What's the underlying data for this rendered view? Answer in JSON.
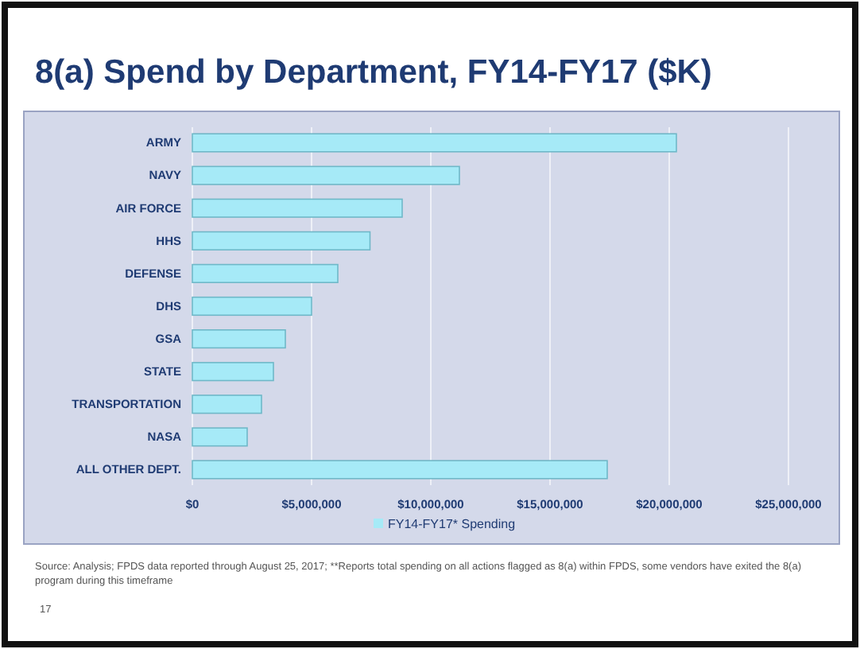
{
  "chart_data": {
    "type": "bar",
    "orientation": "horizontal",
    "title": "8(a) Spend by Department, FY14-FY17 ($K)",
    "categories": [
      "ARMY",
      "NAVY",
      "AIR FORCE",
      "HHS",
      "DEFENSE",
      "DHS",
      "GSA",
      "STATE",
      "TRANSPORTATION",
      "NASA",
      "ALL OTHER DEPT."
    ],
    "series": [
      {
        "name": "FY14-FY17* Spending",
        "color": "#a6eaf7",
        "values": [
          20300000,
          11200000,
          8800000,
          7450000,
          6100000,
          5000000,
          3900000,
          3400000,
          2900000,
          2300000,
          17400000
        ]
      }
    ],
    "xlim": [
      0,
      27000000
    ],
    "xticks": [
      {
        "value": 0,
        "label": "$0"
      },
      {
        "value": 5000000,
        "label": "$5,000,000"
      },
      {
        "value": 10000000,
        "label": "$10,000,000"
      },
      {
        "value": 15000000,
        "label": "$15,000,000"
      },
      {
        "value": 20000000,
        "label": "$20,000,000"
      },
      {
        "value": 25000000,
        "label": "$25,000,000"
      }
    ],
    "grid": "x",
    "legend": "bottom",
    "annotations": [
      "Source: Analysis; FPDS data reported through August 25, 2017; **Reports total spending on all actions flagged as 8(a) within FPDS, some vendors have exited the 8(a) program during this timeframe",
      "17"
    ]
  }
}
